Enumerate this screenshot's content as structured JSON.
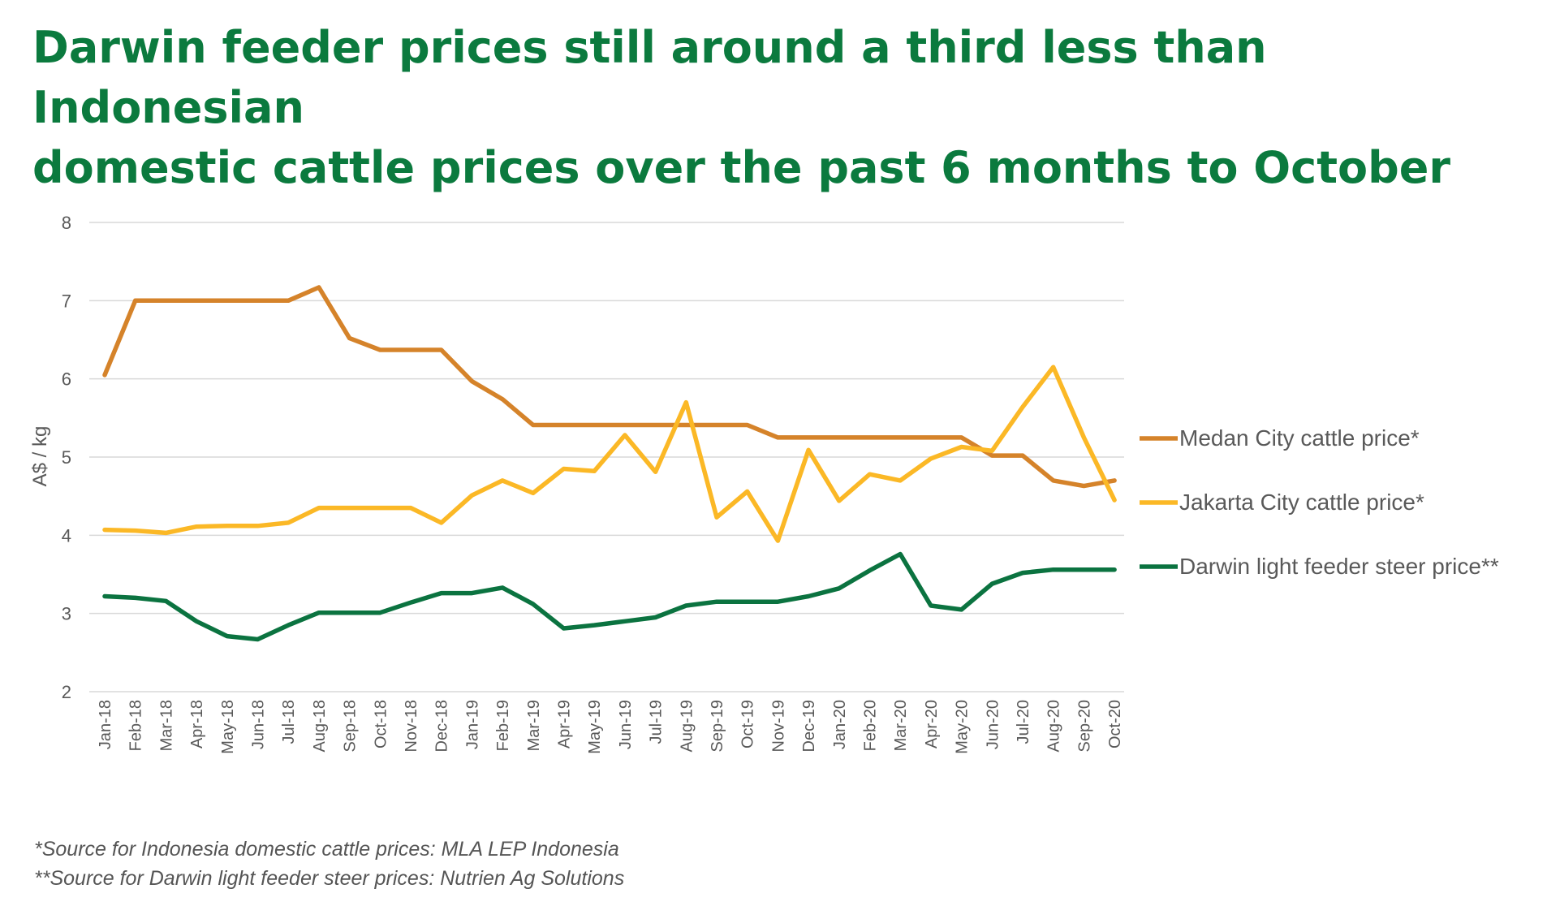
{
  "title": {
    "line1": "Darwin feeder prices still around a third less than Indonesian",
    "line2": "domestic cattle prices over the past 6 months to October"
  },
  "colors": {
    "title": "#0b7a3e",
    "grid": "#d9d9d9",
    "axis_text": "#595959",
    "medan": "#d5832a",
    "jakarta": "#fbb826",
    "darwin": "#0b7340"
  },
  "chart_data": {
    "type": "line",
    "ylabel": "A$ / kg",
    "ylim": [
      2,
      8
    ],
    "yticks": [
      2,
      3,
      4,
      5,
      6,
      7,
      8
    ],
    "grid": true,
    "legend_position": "right",
    "categories": [
      "Jan-18",
      "Feb-18",
      "Mar-18",
      "Apr-18",
      "May-18",
      "Jun-18",
      "Jul-18",
      "Aug-18",
      "Sep-18",
      "Oct-18",
      "Nov-18",
      "Dec-18",
      "Jan-19",
      "Feb-19",
      "Mar-19",
      "Apr-19",
      "May-19",
      "Jun-19",
      "Jul-19",
      "Aug-19",
      "Sep-19",
      "Oct-19",
      "Nov-19",
      "Dec-19",
      "Jan-20",
      "Feb-20",
      "Mar-20",
      "Apr-20",
      "May-20",
      "Jun-20",
      "Jul-20",
      "Aug-20",
      "Sep-20",
      "Oct-20"
    ],
    "series": [
      {
        "name": "Medan City cattle price*",
        "color": "#d5832a",
        "values": [
          6.05,
          7.0,
          7.0,
          7.0,
          7.0,
          7.0,
          7.0,
          7.17,
          6.52,
          6.37,
          6.37,
          6.37,
          5.97,
          5.74,
          5.41,
          5.41,
          5.41,
          5.41,
          5.41,
          5.41,
          5.41,
          5.41,
          5.25,
          5.25,
          5.25,
          5.25,
          5.25,
          5.25,
          5.25,
          5.02,
          5.02,
          4.7,
          4.63,
          4.7
        ]
      },
      {
        "name": "Jakarta City cattle price*",
        "color": "#fbb826",
        "values": [
          4.07,
          4.06,
          4.03,
          4.11,
          4.12,
          4.12,
          4.16,
          4.35,
          4.35,
          4.35,
          4.35,
          4.16,
          4.51,
          4.7,
          4.54,
          4.85,
          4.82,
          5.28,
          4.81,
          5.7,
          4.23,
          4.56,
          3.93,
          5.09,
          4.44,
          4.78,
          4.7,
          4.98,
          5.13,
          5.08,
          5.64,
          6.15,
          5.25,
          4.45
        ]
      },
      {
        "name": "Darwin light feeder steer price**",
        "color": "#0b7340",
        "values": [
          3.22,
          3.2,
          3.16,
          2.9,
          2.71,
          2.67,
          2.85,
          3.01,
          3.01,
          3.01,
          3.14,
          3.26,
          3.26,
          3.33,
          3.12,
          2.81,
          2.85,
          2.9,
          2.95,
          3.1,
          3.15,
          3.15,
          3.15,
          3.22,
          3.32,
          3.55,
          3.76,
          3.1,
          3.05,
          3.38,
          3.52,
          3.56,
          3.56,
          3.56
        ]
      }
    ]
  },
  "sources": {
    "line1": "*Source for Indonesia domestic cattle prices: MLA LEP Indonesia",
    "line2": "**Source for Darwin light feeder steer prices: Nutrien Ag Solutions"
  }
}
